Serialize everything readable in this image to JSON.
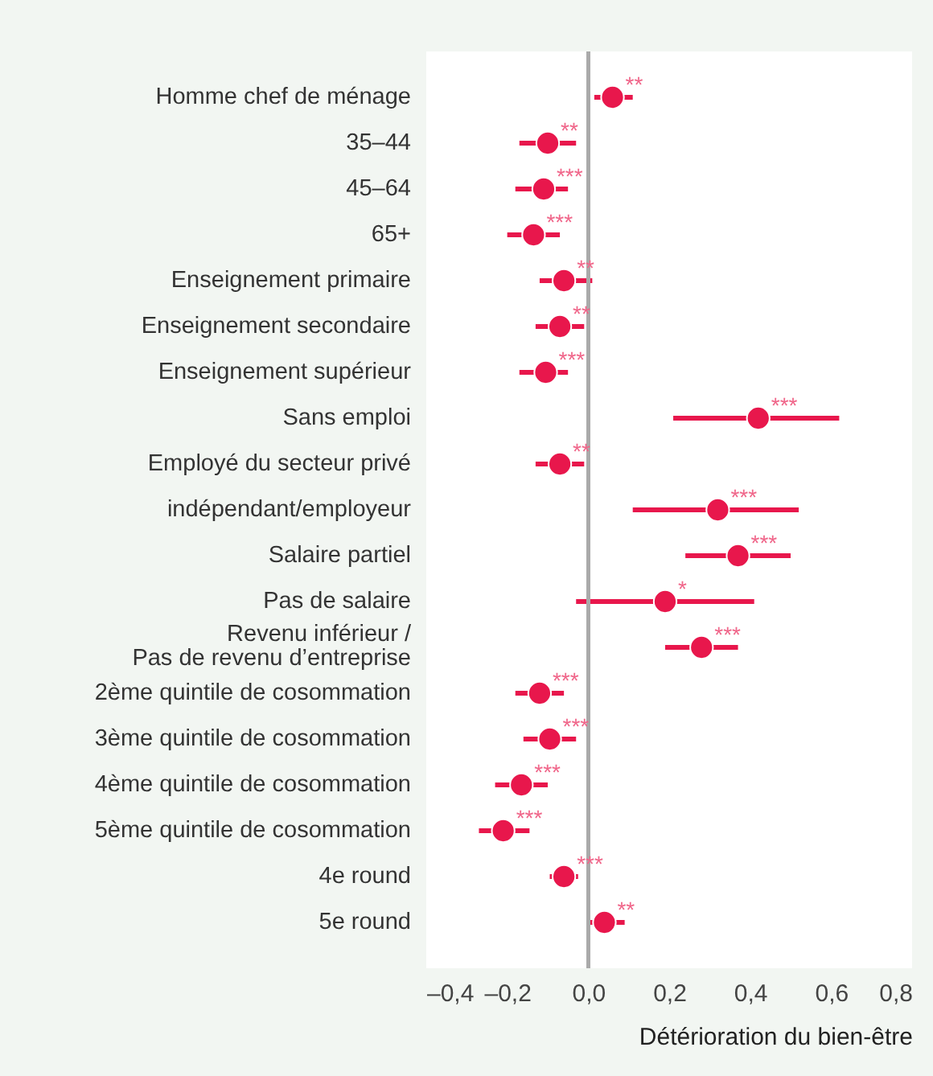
{
  "chart_data": {
    "type": "scatter",
    "orientation": "horizontal",
    "xlabel": "Détérioration du bien-être",
    "categories": [
      "Homme chef de ménage",
      "35–44",
      "45–64",
      "65+",
      "Enseignement primaire",
      "Enseignement secondaire",
      "Enseignement supérieur",
      "Sans emploi",
      "Employé du secteur privé",
      "indépendant/employeur",
      "Salaire partiel",
      "Pas de salaire",
      "Revenu inférieur /\nPas de revenu d’entreprise",
      "2ème quintile de cosommation",
      "3ème quintile de cosommation",
      "4ème quintile de cosommation",
      "5ème quintile de cosommation",
      "4e round",
      "5e round"
    ],
    "series": [
      {
        "color": "#e8174c",
        "values": [
          0.06,
          -0.1,
          -0.11,
          -0.135,
          -0.06,
          -0.07,
          -0.105,
          0.42,
          -0.07,
          0.32,
          0.37,
          0.19,
          0.28,
          -0.12,
          -0.095,
          -0.165,
          -0.21,
          -0.06,
          0.04
        ],
        "errors": [
          [
            0.015,
            0.11
          ],
          [
            -0.17,
            -0.03
          ],
          [
            -0.18,
            -0.05
          ],
          [
            -0.2,
            -0.07
          ],
          [
            -0.12,
            0.01
          ],
          [
            -0.13,
            -0.01
          ],
          [
            -0.17,
            -0.05
          ],
          [
            0.21,
            0.62
          ],
          [
            -0.13,
            -0.01
          ],
          [
            0.11,
            0.52
          ],
          [
            0.24,
            0.5
          ],
          [
            -0.03,
            0.41
          ],
          [
            0.19,
            0.37
          ],
          [
            -0.18,
            -0.06
          ],
          [
            -0.16,
            -0.03
          ],
          [
            -0.23,
            -0.1
          ],
          [
            -0.27,
            -0.145
          ],
          [
            -0.095,
            -0.025
          ],
          [
            0.005,
            0.09
          ]
        ],
        "value_labels": [
          "**",
          "**",
          "***",
          "***",
          "**",
          "**",
          "***",
          "***",
          "**",
          "***",
          "***",
          "*",
          "***",
          "***",
          "***",
          "***",
          "***",
          "***",
          "**"
        ]
      }
    ],
    "xlim": [
      -0.4,
      0.8
    ],
    "xticks": [
      {
        "value": -0.4,
        "label": "–0,4"
      },
      {
        "value": -0.2,
        "label": "–0,2"
      },
      {
        "value": 0,
        "label": "0,0"
      },
      {
        "value": 0.2,
        "label": "0,2"
      },
      {
        "value": 0.4,
        "label": "0,4"
      },
      {
        "value": 0.6,
        "label": "0,6"
      },
      {
        "value": 0.8,
        "label": "0,8"
      }
    ],
    "ref_lines": [
      {
        "axis": "x",
        "value": 0,
        "color": "#aaaaaa"
      }
    ],
    "marker": "circle"
  }
}
